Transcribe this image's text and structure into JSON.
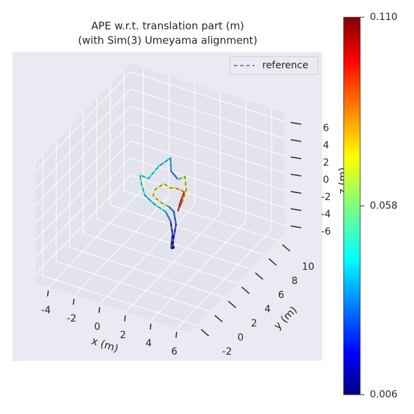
{
  "chart_data": {
    "type": "trajectory3d",
    "title": "APE w.r.t. translation part (m)",
    "subtitle": "(with Sim(3) Umeyama alignment)",
    "xlabel": "x (m)",
    "ylabel": "y (m)",
    "zlabel": "z (m)",
    "xlim": [
      -5,
      7
    ],
    "ylim": [
      -3,
      11
    ],
    "zlim": [
      -7,
      7
    ],
    "xticks": [
      -4,
      -2,
      0,
      2,
      4,
      6
    ],
    "yticks": [
      -2,
      0,
      2,
      4,
      6,
      8,
      10
    ],
    "zticks": [
      -6,
      -4,
      -2,
      0,
      2,
      4,
      6
    ],
    "grid": true,
    "legend": "upper right",
    "series": [
      {
        "name": "reference",
        "color": "#666666",
        "linestyle": "dashed",
        "x": [
          1.85,
          1.96,
          1.8,
          1.42,
          0.61,
          -0.19,
          -0.46,
          -0.57,
          0.08,
          0.88,
          1.8,
          1.85,
          2.39,
          2.92,
          3.03,
          2.76,
          2.39,
          2.6,
          2.87,
          2.23,
          1.69,
          1.31,
          0.61,
          0.45,
          0.99,
          1.69,
          2.06,
          2.23,
          2.06,
          1.96
        ],
        "y": [
          4,
          4,
          4,
          4,
          4,
          4,
          4,
          4,
          4,
          4,
          4,
          4,
          4,
          4,
          4,
          4,
          4,
          4,
          4,
          4,
          4,
          4,
          4,
          4,
          4,
          4,
          4,
          4,
          4,
          4
        ],
        "z": [
          -5.4,
          -3.7,
          -2.3,
          -1.4,
          -1.0,
          -0.3,
          0.85,
          1.9,
          1.8,
          3.6,
          5.0,
          3.5,
          2.8,
          3.4,
          1.9,
          0.6,
          -0.8,
          0.4,
          1.6,
          1.7,
          1.5,
          1.8,
          0.8,
          0.0,
          -0.5,
          -0.7,
          -1.1,
          -2.5,
          -4.0,
          -5.25
        ]
      }
    ],
    "estimate": {
      "colormap": "jet",
      "x": [
        1.85,
        1.96,
        1.8,
        1.42,
        0.61,
        -0.19,
        -0.46,
        -0.57,
        0.08,
        0.88,
        1.8,
        1.85,
        2.39,
        2.92,
        3.03,
        2.76,
        2.39,
        2.6,
        2.87,
        2.23,
        1.69,
        1.31,
        0.61,
        0.45,
        0.99,
        1.69,
        2.06,
        2.23,
        2.06,
        1.96
      ],
      "y": [
        4,
        4,
        4,
        4,
        4,
        4,
        4,
        4,
        4,
        4,
        4,
        4,
        4,
        4,
        4,
        4,
        4,
        4,
        4,
        4,
        4,
        4,
        4,
        4,
        4,
        4,
        4,
        4,
        4,
        4
      ],
      "z": [
        -5.4,
        -3.7,
        -2.3,
        -1.4,
        -1.0,
        -0.3,
        0.85,
        1.9,
        1.8,
        3.6,
        5.0,
        3.5,
        2.8,
        3.4,
        1.9,
        0.6,
        -0.8,
        0.4,
        1.6,
        1.7,
        1.5,
        1.8,
        0.8,
        0.0,
        -0.5,
        -0.7,
        -1.1,
        -2.5,
        -4.0,
        -5.25
      ],
      "error": [
        0.01,
        0.015,
        0.03,
        0.045,
        0.04,
        0.045,
        0.05,
        0.05,
        0.045,
        0.04,
        0.035,
        0.03,
        0.06,
        0.07,
        0.075,
        0.09,
        0.105,
        0.1,
        0.08,
        0.075,
        0.07,
        0.065,
        0.07,
        0.068,
        0.06,
        0.03,
        0.025,
        0.02,
        0.015,
        0.008
      ]
    },
    "clim": [
      0.006,
      0.11
    ],
    "cticks": [
      0.006,
      0.058,
      {
        "value": 0.11,
        "label": "0.110"
      }
    ]
  }
}
